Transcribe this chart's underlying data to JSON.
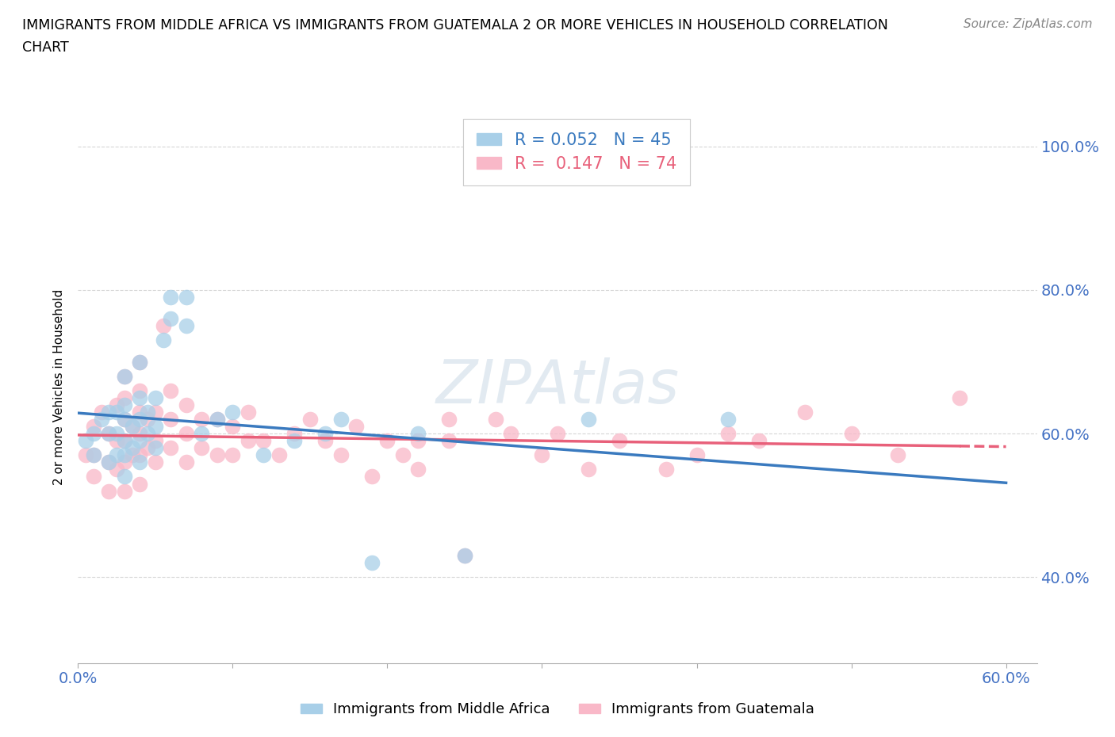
{
  "title_line1": "IMMIGRANTS FROM MIDDLE AFRICA VS IMMIGRANTS FROM GUATEMALA 2 OR MORE VEHICLES IN HOUSEHOLD CORRELATION",
  "title_line2": "CHART",
  "source_text": "Source: ZipAtlas.com",
  "ylabel": "2 or more Vehicles in Household",
  "xlim": [
    0.0,
    0.62
  ],
  "ylim": [
    0.28,
    1.05
  ],
  "xticks": [
    0.0,
    0.1,
    0.2,
    0.3,
    0.4,
    0.5,
    0.6
  ],
  "yticks": [
    0.4,
    0.6,
    0.8,
    1.0
  ],
  "yticklabels": [
    "40.0%",
    "60.0%",
    "80.0%",
    "100.0%"
  ],
  "legend1_label": "R = 0.052   N = 45",
  "legend2_label": "R =  0.147   N = 74",
  "bottom_legend1": "Immigrants from Middle Africa",
  "bottom_legend2": "Immigrants from Guatemala",
  "color_blue": "#a8cfe8",
  "color_pink": "#f9b8c8",
  "color_blue_line": "#3a7abf",
  "color_pink_line": "#e8607a",
  "watermark": "ZIPAtlas",
  "blue_x": [
    0.005,
    0.01,
    0.01,
    0.015,
    0.02,
    0.02,
    0.02,
    0.025,
    0.025,
    0.025,
    0.03,
    0.03,
    0.03,
    0.03,
    0.03,
    0.03,
    0.035,
    0.035,
    0.04,
    0.04,
    0.04,
    0.04,
    0.04,
    0.045,
    0.045,
    0.05,
    0.05,
    0.05,
    0.055,
    0.06,
    0.06,
    0.07,
    0.07,
    0.08,
    0.09,
    0.1,
    0.12,
    0.14,
    0.16,
    0.17,
    0.19,
    0.22,
    0.25,
    0.33,
    0.42
  ],
  "blue_y": [
    0.59,
    0.57,
    0.6,
    0.62,
    0.56,
    0.6,
    0.63,
    0.57,
    0.6,
    0.63,
    0.54,
    0.57,
    0.59,
    0.62,
    0.64,
    0.68,
    0.58,
    0.61,
    0.56,
    0.59,
    0.62,
    0.65,
    0.7,
    0.6,
    0.63,
    0.58,
    0.61,
    0.65,
    0.73,
    0.76,
    0.79,
    0.75,
    0.79,
    0.6,
    0.62,
    0.63,
    0.57,
    0.59,
    0.6,
    0.62,
    0.42,
    0.6,
    0.43,
    0.62,
    0.62
  ],
  "pink_x": [
    0.005,
    0.01,
    0.01,
    0.01,
    0.015,
    0.02,
    0.02,
    0.02,
    0.025,
    0.025,
    0.025,
    0.03,
    0.03,
    0.03,
    0.03,
    0.03,
    0.03,
    0.035,
    0.035,
    0.04,
    0.04,
    0.04,
    0.04,
    0.04,
    0.04,
    0.045,
    0.045,
    0.05,
    0.05,
    0.05,
    0.055,
    0.06,
    0.06,
    0.06,
    0.07,
    0.07,
    0.07,
    0.08,
    0.08,
    0.09,
    0.09,
    0.1,
    0.1,
    0.11,
    0.11,
    0.12,
    0.13,
    0.14,
    0.15,
    0.16,
    0.17,
    0.18,
    0.19,
    0.2,
    0.21,
    0.22,
    0.22,
    0.24,
    0.24,
    0.25,
    0.27,
    0.28,
    0.3,
    0.31,
    0.33,
    0.35,
    0.38,
    0.4,
    0.42,
    0.44,
    0.47,
    0.5,
    0.53,
    0.57
  ],
  "pink_y": [
    0.57,
    0.54,
    0.57,
    0.61,
    0.63,
    0.52,
    0.56,
    0.6,
    0.55,
    0.59,
    0.64,
    0.52,
    0.56,
    0.59,
    0.62,
    0.65,
    0.68,
    0.57,
    0.61,
    0.53,
    0.57,
    0.6,
    0.63,
    0.66,
    0.7,
    0.58,
    0.62,
    0.56,
    0.59,
    0.63,
    0.75,
    0.58,
    0.62,
    0.66,
    0.56,
    0.6,
    0.64,
    0.58,
    0.62,
    0.57,
    0.62,
    0.57,
    0.61,
    0.59,
    0.63,
    0.59,
    0.57,
    0.6,
    0.62,
    0.59,
    0.57,
    0.61,
    0.54,
    0.59,
    0.57,
    0.55,
    0.59,
    0.62,
    0.59,
    0.43,
    0.62,
    0.6,
    0.57,
    0.6,
    0.55,
    0.59,
    0.55,
    0.57,
    0.6,
    0.59,
    0.63,
    0.6,
    0.57,
    0.65
  ]
}
